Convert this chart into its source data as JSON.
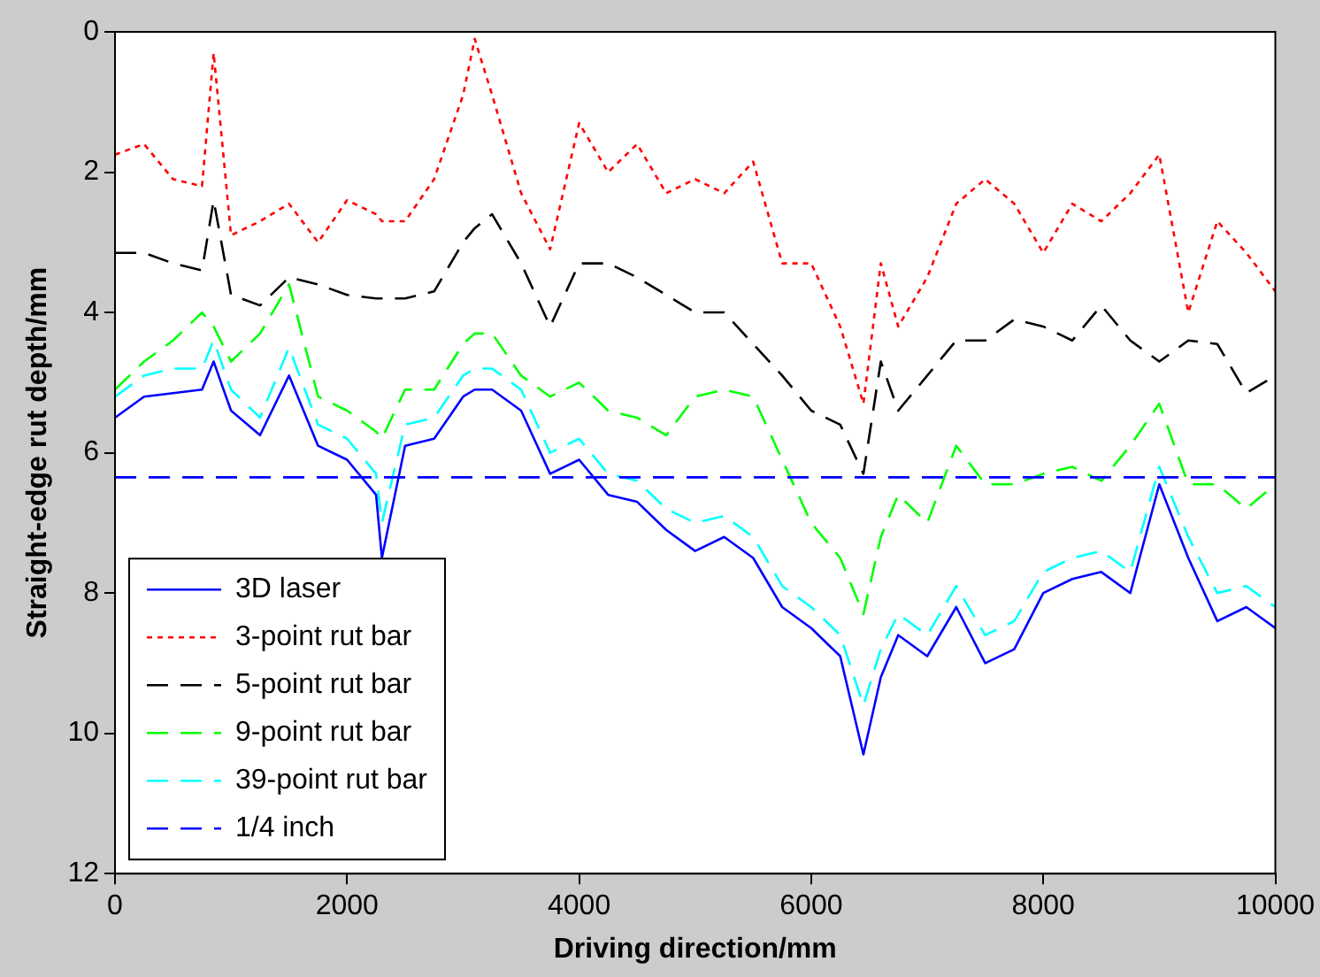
{
  "chart_data": {
    "type": "line",
    "xlabel": "Driving direction/mm",
    "ylabel": "Straight-edge rut depth/mm",
    "xlim": [
      0,
      10000
    ],
    "xticks": [
      0,
      2000,
      4000,
      6000,
      8000,
      10000
    ],
    "ylim": [
      12,
      0
    ],
    "yticks": [
      0,
      2,
      4,
      6,
      8,
      10,
      12
    ],
    "grid": false,
    "legend": "bottom left",
    "marker": "none",
    "x": [
      0,
      250,
      500,
      750,
      850,
      1000,
      1250,
      1500,
      1750,
      2000,
      2250,
      2300,
      2500,
      2750,
      3000,
      3100,
      3250,
      3500,
      3750,
      4000,
      4250,
      4500,
      4750,
      5000,
      5250,
      5500,
      5750,
      6000,
      6250,
      6450,
      6600,
      6750,
      7000,
      7250,
      7500,
      7750,
      8000,
      8250,
      8500,
      8750,
      9000,
      9250,
      9500,
      9750,
      10000
    ],
    "series": [
      {
        "name": "3D laser",
        "color": "#0000ff",
        "line_style": "solid",
        "values": [
          5.5,
          5.2,
          5.15,
          5.1,
          4.7,
          5.4,
          5.75,
          4.9,
          5.9,
          6.1,
          6.6,
          7.5,
          5.9,
          5.8,
          5.2,
          5.1,
          5.1,
          5.4,
          6.3,
          6.1,
          6.6,
          6.7,
          7.1,
          7.4,
          7.2,
          7.5,
          8.2,
          8.5,
          8.9,
          10.3,
          9.2,
          8.6,
          8.9,
          8.2,
          9.0,
          8.8,
          8.0,
          7.8,
          7.7,
          8.0,
          6.45,
          7.5,
          8.4,
          8.2,
          8.5
        ]
      },
      {
        "name": "3-point rut bar",
        "color": "#ff0000",
        "line_style": "dotted",
        "values": [
          1.75,
          1.6,
          2.1,
          2.2,
          0.3,
          2.9,
          2.7,
          2.45,
          3.0,
          2.4,
          2.6,
          2.7,
          2.7,
          2.1,
          0.9,
          0.1,
          0.9,
          2.3,
          3.1,
          1.3,
          2.0,
          1.6,
          2.3,
          2.1,
          2.3,
          1.85,
          3.3,
          3.3,
          4.2,
          5.3,
          3.3,
          4.2,
          3.5,
          2.45,
          2.1,
          2.45,
          3.15,
          2.45,
          2.7,
          2.3,
          1.75,
          4.0,
          2.7,
          3.15,
          3.7
        ]
      },
      {
        "name": "5-point rut bar",
        "color": "#000000",
        "line_style": "dashed",
        "values": [
          3.15,
          3.15,
          3.3,
          3.4,
          2.4,
          3.75,
          3.9,
          3.5,
          3.6,
          3.75,
          3.8,
          3.8,
          3.8,
          3.7,
          3.0,
          2.8,
          2.6,
          3.3,
          4.2,
          3.3,
          3.3,
          3.5,
          3.75,
          4.0,
          4.0,
          4.45,
          4.9,
          5.4,
          5.6,
          6.3,
          4.7,
          5.4,
          4.9,
          4.4,
          4.4,
          4.1,
          4.2,
          4.4,
          3.9,
          4.4,
          4.7,
          4.4,
          4.45,
          5.15,
          4.9
        ]
      },
      {
        "name": "9-point rut bar",
        "color": "#00ff00",
        "line_style": "dashed",
        "values": [
          5.1,
          4.7,
          4.4,
          4.0,
          4.2,
          4.7,
          4.3,
          3.6,
          5.2,
          5.4,
          5.7,
          5.8,
          5.1,
          5.1,
          4.45,
          4.3,
          4.3,
          4.9,
          5.2,
          5.0,
          5.4,
          5.5,
          5.75,
          5.2,
          5.1,
          5.2,
          6.1,
          7.0,
          7.5,
          8.3,
          7.2,
          6.6,
          7.0,
          5.9,
          6.45,
          6.45,
          6.3,
          6.2,
          6.4,
          5.9,
          5.3,
          6.45,
          6.45,
          6.8,
          6.45
        ]
      },
      {
        "name": "39-point rut bar",
        "color": "#00ffff",
        "line_style": "dashed",
        "values": [
          5.2,
          4.9,
          4.8,
          4.8,
          4.4,
          5.1,
          5.5,
          4.5,
          5.6,
          5.8,
          6.3,
          7.0,
          5.6,
          5.5,
          4.9,
          4.8,
          4.8,
          5.1,
          6.0,
          5.8,
          6.3,
          6.4,
          6.8,
          7.0,
          6.9,
          7.2,
          7.9,
          8.2,
          8.6,
          9.6,
          8.8,
          8.3,
          8.6,
          7.9,
          8.6,
          8.4,
          7.7,
          7.5,
          7.4,
          7.7,
          6.2,
          7.2,
          8.0,
          7.9,
          8.2
        ]
      }
    ],
    "ref_lines": [
      {
        "axis": "y",
        "value": 6.35,
        "label": "1/4 inch",
        "color": "#0000ff",
        "line_style": "dashed"
      }
    ]
  }
}
